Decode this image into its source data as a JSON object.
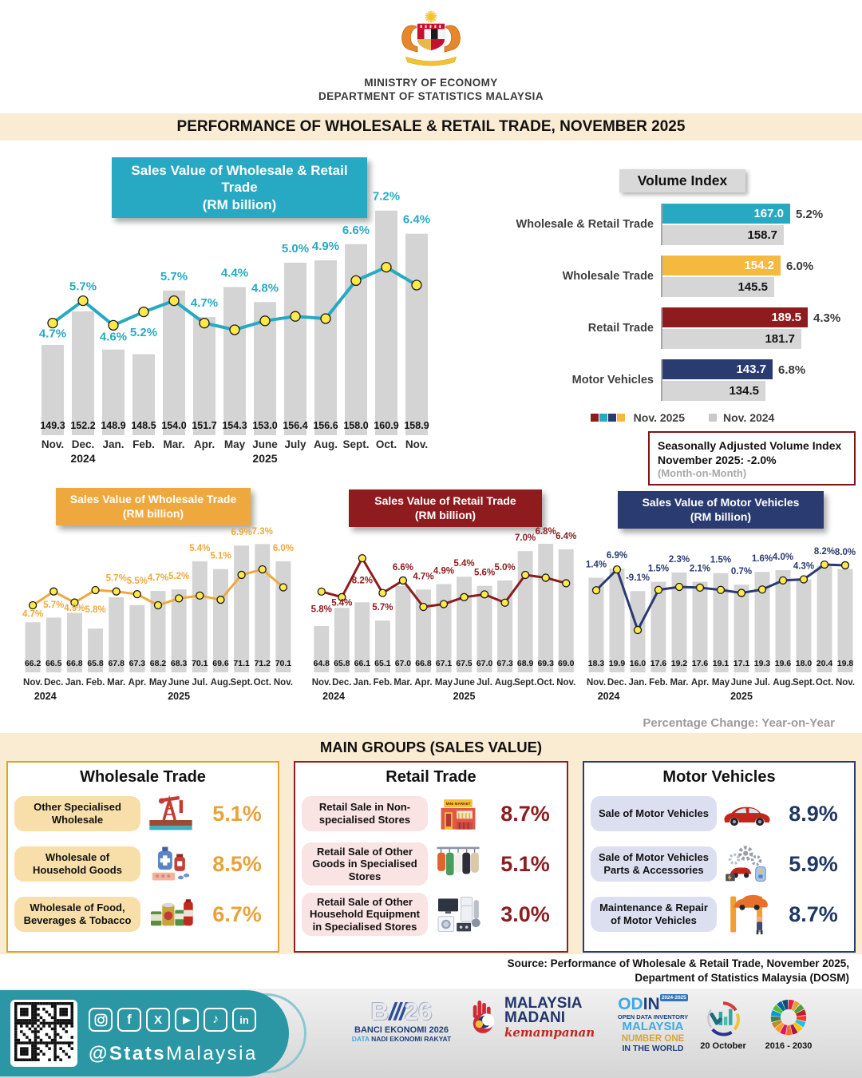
{
  "header": {
    "ministry": "MINISTRY OF ECONOMY",
    "department": "DEPARTMENT OF STATISTICS MALAYSIA",
    "title": "PERFORMANCE OF WHOLESALE & RETAIL TRADE, NOVEMBER 2025"
  },
  "colors": {
    "teal": "#27A9C3",
    "gold": "#EFA83D",
    "gold_bar": "#F5B93F",
    "dark_red": "#8E1B1E",
    "navy": "#2A3B72",
    "bar_gray": "#D4D4D4",
    "cream": "#FAECD2",
    "dot_yellow": "#FFE94A"
  },
  "chart_data": [
    {
      "id": "wholesale_retail",
      "type": "bar+line",
      "title": "Sales Value of Wholesale & Retail Trade",
      "subtitle": "(RM billion)",
      "categories": [
        "Nov.",
        "Dec.",
        "Jan.",
        "Feb.",
        "Mar.",
        "Apr.",
        "May",
        "June",
        "July",
        "Aug.",
        "Sept.",
        "Oct.",
        "Nov."
      ],
      "years": [
        "2024",
        "2025"
      ],
      "bar_values": [
        149.3,
        152.2,
        148.9,
        148.5,
        154.0,
        151.7,
        154.3,
        153.0,
        156.4,
        156.6,
        158.0,
        160.9,
        158.9
      ],
      "line_values_pct": [
        4.7,
        5.7,
        4.6,
        5.2,
        5.7,
        4.7,
        4.4,
        4.8,
        5.0,
        4.9,
        6.6,
        7.2,
        6.4
      ],
      "accent": "#27A9C3"
    },
    {
      "id": "wholesale",
      "type": "bar+line",
      "title": "Sales Value of Wholesale Trade",
      "subtitle": "(RM billion)",
      "categories": [
        "Nov.",
        "Dec.",
        "Jan.",
        "Feb.",
        "Mar.",
        "Apr.",
        "May",
        "June",
        "Jul.",
        "Aug.",
        "Sept.",
        "Oct.",
        "Nov."
      ],
      "years": [
        "2024",
        "2025"
      ],
      "bar_values": [
        66.2,
        66.5,
        66.8,
        65.8,
        67.8,
        67.3,
        68.2,
        68.3,
        70.1,
        69.6,
        71.1,
        71.2,
        70.1
      ],
      "line_values_pct": [
        4.7,
        5.7,
        4.9,
        5.8,
        5.7,
        5.5,
        4.7,
        5.2,
        5.4,
        5.1,
        6.9,
        7.3,
        6.0
      ],
      "accent": "#EFA83D"
    },
    {
      "id": "retail",
      "type": "bar+line",
      "title": "Sales Value of Retail Trade",
      "subtitle": "(RM billion)",
      "categories": [
        "Nov.",
        "Dec.",
        "Jan.",
        "Feb.",
        "Mar.",
        "Apr.",
        "May",
        "June",
        "Jul.",
        "Aug.",
        "Sept.",
        "Oct.",
        "Nov."
      ],
      "years": [
        "2024",
        "2025"
      ],
      "bar_values": [
        64.8,
        65.8,
        66.1,
        65.1,
        67.0,
        66.8,
        67.1,
        67.5,
        67.0,
        67.3,
        68.9,
        69.3,
        69.0
      ],
      "line_values_pct": [
        5.8,
        5.4,
        8.2,
        5.7,
        6.6,
        4.7,
        4.9,
        5.4,
        5.6,
        5.0,
        7.0,
        6.8,
        6.4
      ],
      "accent": "#8E1B1E"
    },
    {
      "id": "motor",
      "type": "bar+line",
      "title": "Sales Value of Motor Vehicles",
      "subtitle": "(RM billion)",
      "categories": [
        "Nov.",
        "Dec.",
        "Jan.",
        "Feb.",
        "Mar.",
        "Apr.",
        "May",
        "June",
        "Jul.",
        "Aug.",
        "Sept.",
        "Oct.",
        "Nov."
      ],
      "years": [
        "2024",
        "2025"
      ],
      "bar_values": [
        18.3,
        19.9,
        16.0,
        17.6,
        19.2,
        17.6,
        19.1,
        17.1,
        19.3,
        19.6,
        18.0,
        20.4,
        19.8
      ],
      "line_values_pct": [
        1.4,
        6.9,
        -9.1,
        1.5,
        2.3,
        2.1,
        1.5,
        0.7,
        1.6,
        4.0,
        4.3,
        8.2,
        8.0
      ],
      "accent": "#2A3B72"
    },
    {
      "id": "volume_index",
      "type": "paired-bar",
      "title": "Volume Index",
      "rows": [
        {
          "label": "Wholesale & Retail Trade",
          "value_2025": 167.0,
          "value_2024": 158.7,
          "pct": 5.2,
          "color": "#27A9C3"
        },
        {
          "label": "Wholesale Trade",
          "value_2025": 154.2,
          "value_2024": 145.5,
          "pct": 6.0,
          "color": "#F5B93F"
        },
        {
          "label": "Retail Trade",
          "value_2025": 189.5,
          "value_2024": 181.7,
          "pct": 4.3,
          "color": "#8E1B1E"
        },
        {
          "label": "Motor Vehicles",
          "value_2025": 143.7,
          "value_2024": 134.5,
          "pct": 6.8,
          "color": "#2A3B72"
        }
      ],
      "legend": [
        {
          "label": "Nov. 2025"
        },
        {
          "label": "Nov. 2024"
        }
      ],
      "legend_colors_2025": [
        "#8E1B1E",
        "#27A9C3",
        "#2A3B72",
        "#F5B93F"
      ],
      "legend_color_2024": "#C9C9C9",
      "note": "Seasonally Adjusted Volume Index November 2025: -2.0%",
      "note_sub": "(Month-on-Month)"
    }
  ],
  "footnotes": {
    "pct_change": "Percentage Change: Year-on-Year",
    "source1": "Source: Performance of Wholesale & Retail Trade, November 2025,",
    "source2": "Department of Statistics Malaysia (DOSM)"
  },
  "main_groups": {
    "band_title": "MAIN GROUPS (SALES VALUE)",
    "mini_market_sign": "MINI MARKET",
    "groups": [
      {
        "title": "Wholesale Trade",
        "border": "#DFA32B",
        "label_bg": "#F8DFA9",
        "pct_color": "#E9A23B",
        "items": [
          {
            "label": "Other Specialised Wholesale",
            "icon": "oil-pump-icon",
            "pct": "5.1%"
          },
          {
            "label": "Wholesale of Household Goods",
            "icon": "medicine-icon",
            "pct": "8.5%"
          },
          {
            "label": "Wholesale of Food, Beverages & Tobacco",
            "icon": "canned-food-icon",
            "pct": "6.7%"
          }
        ]
      },
      {
        "title": "Retail Trade",
        "border": "#8C2022",
        "label_bg": "#F9E3E3",
        "pct_color": "#8C1D20",
        "items": [
          {
            "label": "Retail Sale in Non-specialised Stores",
            "icon": "minimarket-icon",
            "pct": "8.7%"
          },
          {
            "label": "Retail Sale of Other Goods in Specialised Stores",
            "icon": "clothes-icon",
            "pct": "5.1%"
          },
          {
            "label": "Retail Sale of Other Household Equipment in Specialised Stores",
            "icon": "appliances-icon",
            "pct": "3.0%"
          }
        ]
      },
      {
        "title": "Motor Vehicles",
        "border": "#2A3B72",
        "label_bg": "#DCDFF0",
        "pct_color": "#1F3864",
        "items": [
          {
            "label": "Sale of Motor Vehicles",
            "icon": "car-icon",
            "pct": "8.9%"
          },
          {
            "label": "Sale of Motor Vehicles Parts & Accessories",
            "icon": "car-parts-icon",
            "pct": "5.9%"
          },
          {
            "label": "Maintenance & Repair of Motor Vehicles",
            "icon": "car-repair-icon",
            "pct": "8.7%"
          }
        ]
      }
    ]
  },
  "footer": {
    "handle_bold": "@Stats",
    "handle_rest": "Malaysia",
    "social": [
      "instagram",
      "facebook",
      "x",
      "youtube",
      "tiktok",
      "linkedin"
    ],
    "banci": {
      "mark_b": "B",
      "mark_sl": "///",
      "mark_26": "26",
      "line1": "BANCI EKONOMI 2026",
      "line2_a": "DATA",
      "line2_b": " NADI EKONOMI RAKYAT"
    },
    "madani": {
      "line1": "MALAYSIA",
      "line2": "MADANI",
      "line3": "kemampanan"
    },
    "odin": {
      "od": "OD",
      "in": "IN",
      "badge": "2024-2025",
      "line1": "OPEN DATA INVENTORY",
      "line2": "MALAYSIA",
      "line3": "NUMBER ONE",
      "line4": "IN THE WORLD"
    },
    "stats_day": "20 October",
    "sdg_years": "2016 - 2030"
  }
}
